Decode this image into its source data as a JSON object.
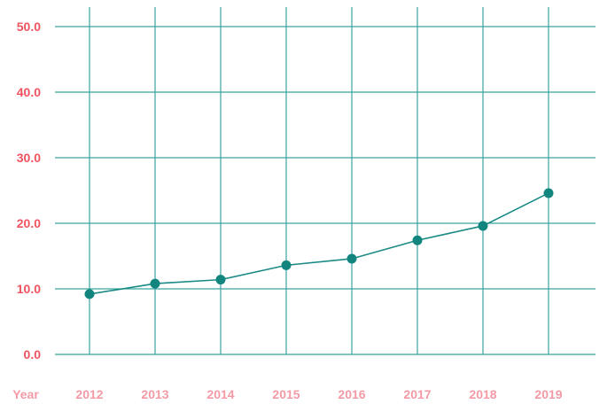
{
  "chart_data": {
    "type": "line",
    "xlabel": "Year",
    "ylabel": "",
    "categories": [
      "2012",
      "2013",
      "2014",
      "2015",
      "2016",
      "2017",
      "2018",
      "2019"
    ],
    "series": [
      {
        "values": [
          9.2,
          10.8,
          11.4,
          13.6,
          14.6,
          17.4,
          19.6,
          24.6
        ]
      }
    ],
    "ylim": [
      0,
      50
    ],
    "yticks": [
      "0.0",
      "10.0",
      "20.0",
      "30.0",
      "40.0",
      "50.0"
    ],
    "grid": true,
    "colors": {
      "line": "#1a8a85",
      "marker": "#12857f",
      "grid": "#3aa3a0",
      "ytick_text": "#f0525e",
      "xtick_text": "#f49aa6",
      "xlabel_text": "#f49aa6",
      "background": "#ffffff"
    }
  }
}
